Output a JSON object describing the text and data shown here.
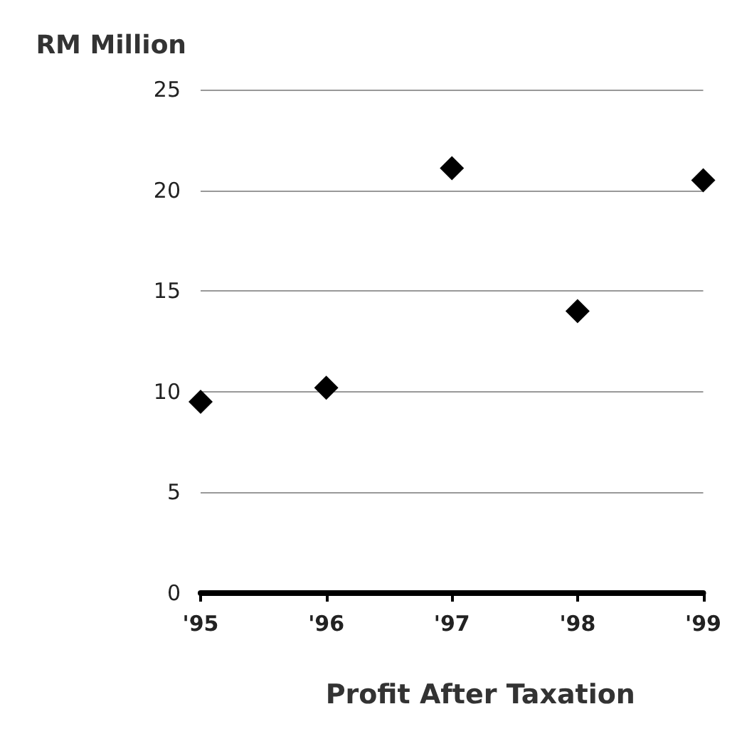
{
  "chart_data": {
    "type": "scatter",
    "xlabel": "Profit After Taxation",
    "ylabel": "RM Million",
    "categories": [
      "'95",
      "'96",
      "'97",
      "'98",
      "'99"
    ],
    "values": [
      9.5,
      10.2,
      21.1,
      14.0,
      20.5
    ],
    "color": "#000000",
    "marker": "diamond",
    "ylim": [
      0,
      25
    ],
    "yticks": [
      0,
      5,
      10,
      15,
      20,
      25
    ],
    "grid": "y"
  }
}
